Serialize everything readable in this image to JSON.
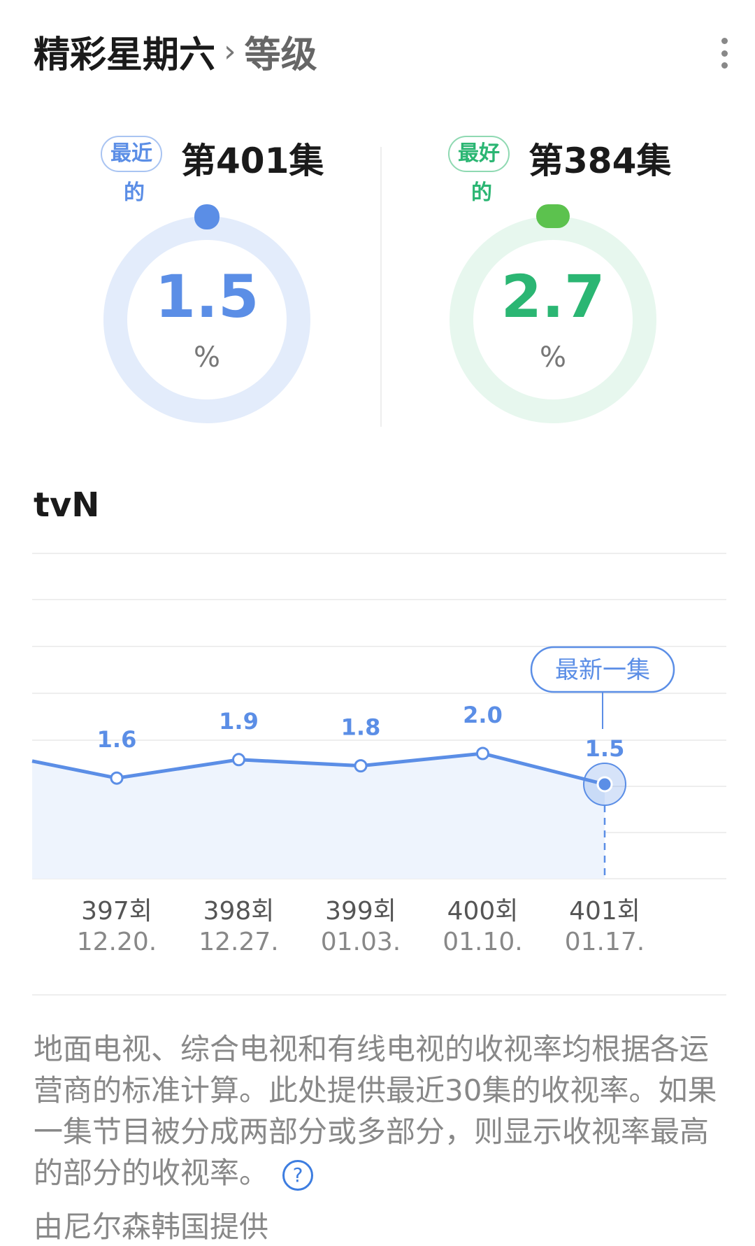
{
  "header": {
    "title": "精彩星期六",
    "separator": "›",
    "subtitle": "等级",
    "more_icon": "more-vertical-icon"
  },
  "recent": {
    "badge": "最近",
    "badge_sub": "的",
    "episode": "第401集",
    "value": "1.5",
    "unit": "%",
    "color": "#5b8ee6",
    "ring_color": "#e3ecfb",
    "knob_color": "#5b8ee6"
  },
  "best": {
    "badge": "最好",
    "badge_sub": "的",
    "episode": "第384集",
    "value": "2.7",
    "unit": "%",
    "color": "#2bb673",
    "ring_color": "#e7f7ee",
    "knob_color": "#5cc24e"
  },
  "channel": "tvN",
  "chart_data": {
    "type": "line",
    "categories": [
      "397회",
      "398회",
      "399회",
      "400회",
      "401회"
    ],
    "dates": [
      "12.20.",
      "12.27.",
      "01.03.",
      "01.10.",
      "01.17."
    ],
    "values": [
      1.6,
      1.9,
      1.8,
      2.0,
      1.5
    ],
    "leading_value": 2.0,
    "data_labels": [
      "1.6",
      "1.9",
      "1.8",
      "2.0",
      "1.5"
    ],
    "highlight_label": "最新一集",
    "highlight_index": 4,
    "grid": true,
    "color": "#5b8ee6",
    "fill": "#eef4fd"
  },
  "note": "地面电视、综合电视和有线电视的收视率均根据各运营商的标准计算。此处提供最近30集的收视率。如果一集节目被分成两部分或多部分，则显示收视率最高的部分的收视率。",
  "help_icon": "?",
  "source": "由尼尔森韩国提供"
}
